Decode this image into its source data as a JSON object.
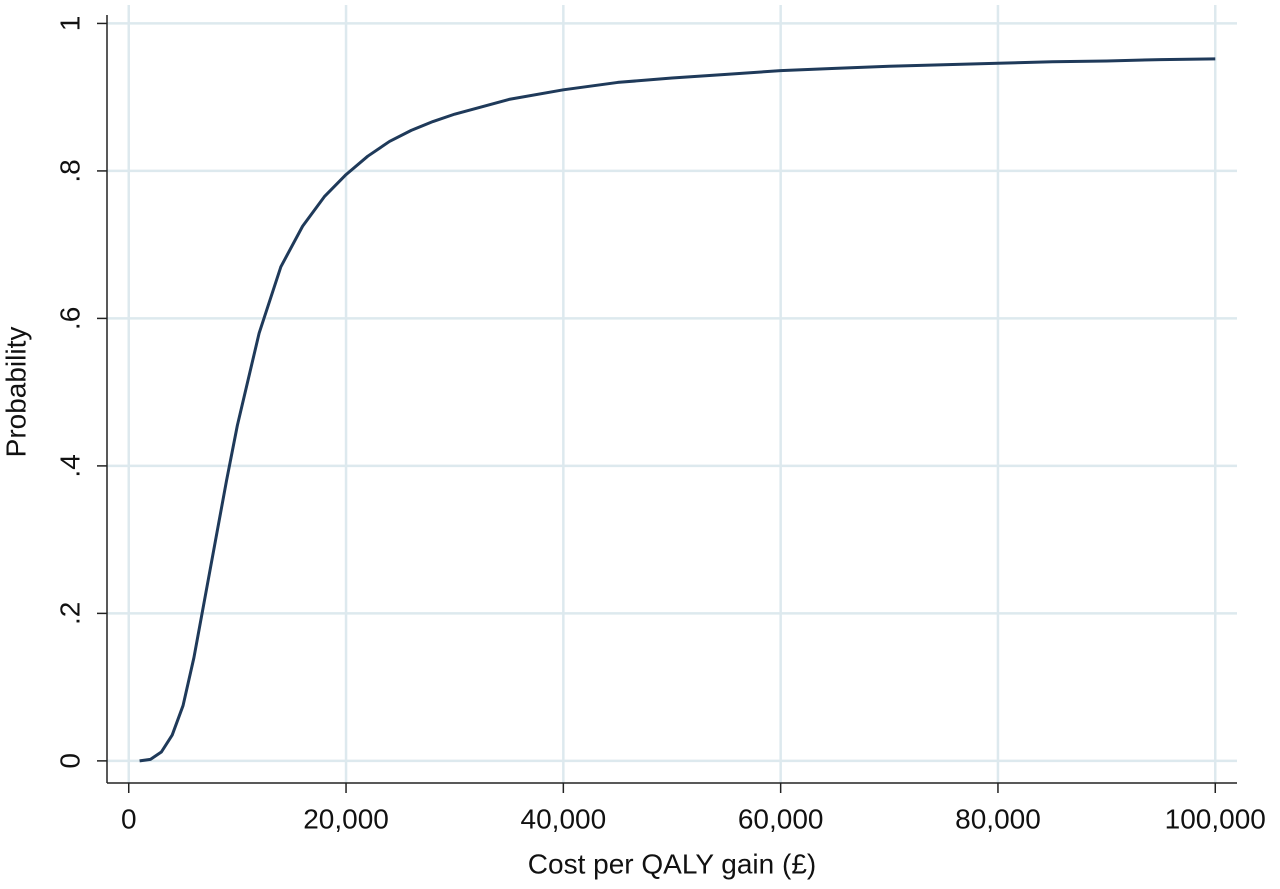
{
  "chart_data": {
    "type": "line",
    "xlabel": "Cost per QALY gain (£)",
    "ylabel": "Probability",
    "x": [
      1000,
      2000,
      3000,
      4000,
      5000,
      6000,
      7000,
      8000,
      9000,
      10000,
      12000,
      14000,
      16000,
      18000,
      20000,
      22000,
      24000,
      26000,
      28000,
      30000,
      35000,
      40000,
      45000,
      50000,
      55000,
      60000,
      65000,
      70000,
      75000,
      80000,
      85000,
      90000,
      95000,
      100000
    ],
    "values": [
      0.0,
      0.002,
      0.012,
      0.035,
      0.075,
      0.14,
      0.22,
      0.3,
      0.38,
      0.455,
      0.58,
      0.67,
      0.725,
      0.765,
      0.795,
      0.82,
      0.84,
      0.855,
      0.867,
      0.877,
      0.897,
      0.91,
      0.92,
      0.926,
      0.931,
      0.936,
      0.939,
      0.942,
      0.944,
      0.946,
      0.948,
      0.949,
      0.951,
      0.952
    ],
    "color": "#1f3a5a",
    "xlim": [
      -2000,
      102000
    ],
    "ylim": [
      -0.03,
      1.025
    ],
    "xticks": [
      0,
      {
        "value": 20000,
        "label": "20,000"
      },
      {
        "value": 40000,
        "label": "40,000"
      },
      {
        "value": 60000,
        "label": "60,000"
      },
      {
        "value": 80000,
        "label": "80,000"
      },
      {
        "value": 100000,
        "label": "100,000"
      }
    ],
    "yticks": [
      0,
      {
        "value": 0.2,
        "label": ".2"
      },
      {
        "value": 0.4,
        "label": ".4"
      },
      {
        "value": 0.6,
        "label": ".6"
      },
      {
        "value": 0.8,
        "label": ".8"
      },
      1
    ],
    "grid": true
  }
}
